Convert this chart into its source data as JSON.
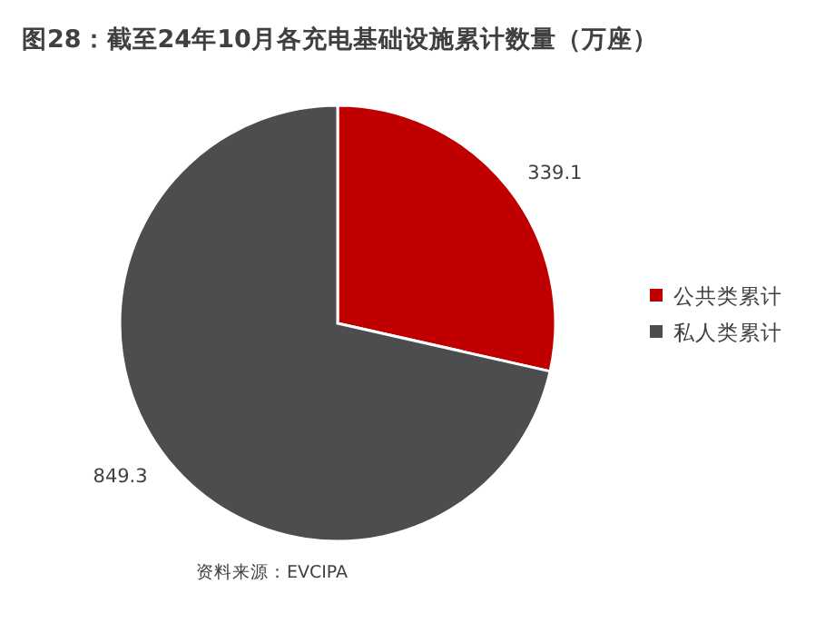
{
  "chart_data": {
    "type": "pie",
    "title": "图28：截至24年10月各充电基础设施累计数量（万座）",
    "categories": [
      "公共类累计",
      "私人类累计"
    ],
    "values": [
      339.1,
      849.3
    ],
    "colors": [
      "#c00000",
      "#4d4d4f"
    ],
    "data_labels": true,
    "legend": "right",
    "annotations": [
      "资料来源：EVCIPA"
    ]
  }
}
